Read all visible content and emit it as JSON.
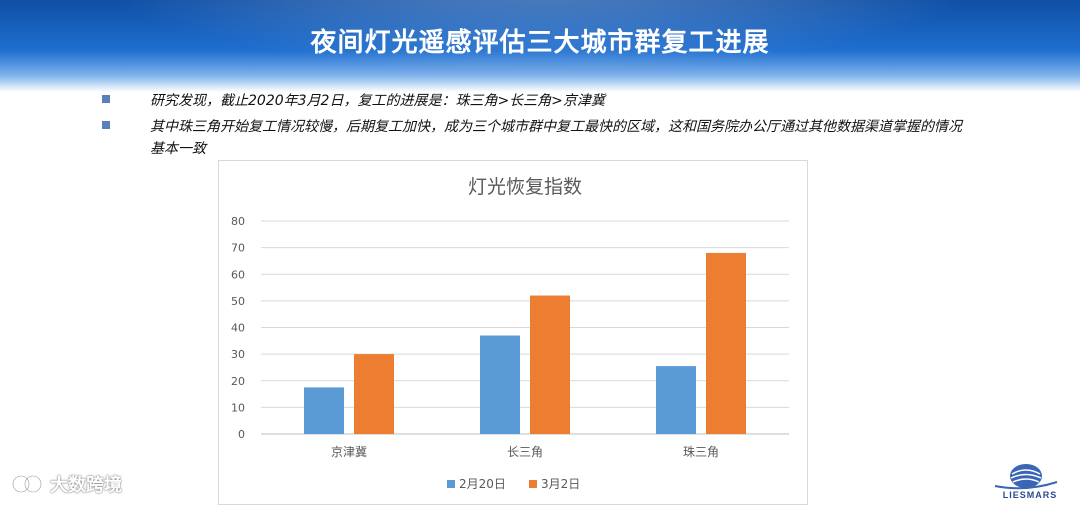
{
  "slide": {
    "title": "夜间灯光遥感评估三大城市群复工进展",
    "bullets": [
      "研究发现，截止2020年3月2日，复工的进展是：珠三角>长三角>京津冀",
      "其中珠三角开始复工情况较慢，后期复工加快，成为三个城市群中复工最快的区域，这和国务院办公厅通过其他数据渠道掌握的情况基本一致"
    ]
  },
  "chart_data": {
    "type": "bar",
    "title": "灯光恢复指数",
    "categories": [
      "京津冀",
      "长三角",
      "珠三角"
    ],
    "series": [
      {
        "name": "2月20日",
        "values": [
          17.5,
          37,
          25.5
        ],
        "color": "#5b9bd5"
      },
      {
        "name": "3月2日",
        "values": [
          30,
          52,
          68
        ],
        "color": "#ed7d31"
      }
    ],
    "ylim": [
      0,
      80
    ],
    "yticks": [
      0,
      10,
      20,
      30,
      40,
      50,
      60,
      70,
      80
    ],
    "grid": true,
    "legend_position": "bottom"
  },
  "watermark": {
    "text": "大数跨境",
    "icon": "watermark-logo-icon"
  },
  "logo": {
    "text": "LIESMARS",
    "icon": "liesmars-globe-icon"
  }
}
